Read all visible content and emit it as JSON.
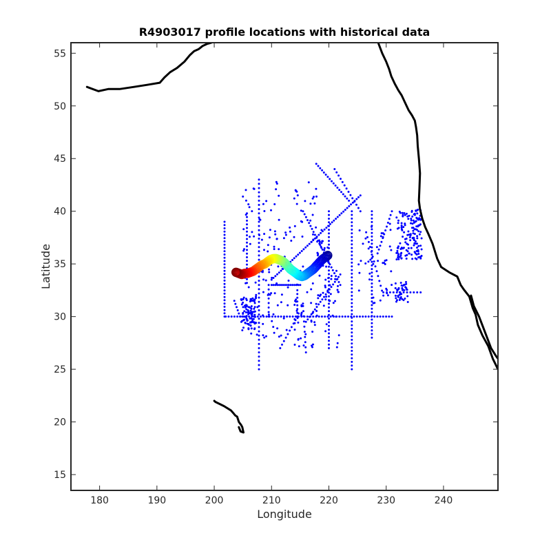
{
  "chart_data": {
    "type": "scatter",
    "title": "R4903017 profile locations with historical data",
    "xlabel": "Longitude",
    "ylabel": "Latitude",
    "xlim": [
      175,
      249.5
    ],
    "ylim": [
      13.5,
      56
    ],
    "xticks": [
      180,
      190,
      200,
      210,
      220,
      230,
      240
    ],
    "yticks": [
      15,
      20,
      25,
      30,
      35,
      40,
      45,
      50,
      55
    ],
    "grid": false,
    "legend": "none",
    "colors": {
      "historical": "#0000ff",
      "coastline": "#000000",
      "colormap": [
        "#00008f",
        "#0000ff",
        "#0080ff",
        "#00ffff",
        "#80ff80",
        "#ffff00",
        "#ff8000",
        "#ff0000",
        "#800000"
      ]
    },
    "coastline": {
      "north_america": [
        [
          228.6,
          56.0
        ],
        [
          229.3,
          55.0
        ],
        [
          230.0,
          54.2
        ],
        [
          230.5,
          53.5
        ],
        [
          230.9,
          52.8
        ],
        [
          231.5,
          52.1
        ],
        [
          232.1,
          51.5
        ],
        [
          232.7,
          51.0
        ],
        [
          233.3,
          50.3
        ],
        [
          233.9,
          49.6
        ],
        [
          234.5,
          49.1
        ],
        [
          235.0,
          48.6
        ],
        [
          235.2,
          48.0
        ],
        [
          235.4,
          47.2
        ],
        [
          235.5,
          46.2
        ],
        [
          235.7,
          45.0
        ],
        [
          235.9,
          43.6
        ],
        [
          235.8,
          42.2
        ],
        [
          235.7,
          41.0
        ],
        [
          235.9,
          40.2
        ],
        [
          236.3,
          39.3
        ],
        [
          236.8,
          38.5
        ],
        [
          237.4,
          37.8
        ],
        [
          238.1,
          36.9
        ],
        [
          238.9,
          35.5
        ],
        [
          239.6,
          34.7
        ],
        [
          241.0,
          34.2
        ],
        [
          242.4,
          33.8
        ],
        [
          243.0,
          33.0
        ],
        [
          243.5,
          32.6
        ],
        [
          244.5,
          31.9
        ],
        [
          245.1,
          30.8
        ],
        [
          245.6,
          30.2
        ],
        [
          246.0,
          29.2
        ],
        [
          246.8,
          28.2
        ],
        [
          247.8,
          27.2
        ],
        [
          248.6,
          26.0
        ],
        [
          249.5,
          25.0
        ]
      ],
      "baja_gulf_side": [
        [
          244.8,
          32.0
        ],
        [
          245.3,
          31.0
        ],
        [
          246.2,
          30.0
        ],
        [
          246.9,
          29.0
        ],
        [
          247.6,
          28.0
        ],
        [
          248.3,
          27.0
        ],
        [
          249.1,
          26.3
        ],
        [
          249.5,
          26.0
        ]
      ],
      "aleutians": [
        [
          177.8,
          51.8
        ],
        [
          179.8,
          51.4
        ],
        [
          181.5,
          51.6
        ],
        [
          183.5,
          51.6
        ],
        [
          186.0,
          51.8
        ],
        [
          188.3,
          52.0
        ],
        [
          190.5,
          52.2
        ],
        [
          191.3,
          52.7
        ],
        [
          192.3,
          53.2
        ],
        [
          193.5,
          53.6
        ],
        [
          194.8,
          54.2
        ],
        [
          195.7,
          54.8
        ],
        [
          196.5,
          55.2
        ],
        [
          197.3,
          55.4
        ],
        [
          198.0,
          55.7
        ],
        [
          198.8,
          55.9
        ],
        [
          199.5,
          56.0
        ]
      ],
      "hawaii": [
        [
          200.0,
          22.0
        ],
        [
          200.2,
          21.9
        ],
        [
          201.7,
          21.5
        ],
        [
          202.9,
          21.1
        ],
        [
          203.4,
          20.8
        ],
        [
          203.7,
          20.6
        ],
        [
          204.0,
          20.5
        ],
        [
          204.3,
          20.0
        ],
        [
          204.7,
          19.7
        ],
        [
          204.9,
          19.5
        ],
        [
          205.1,
          19.0
        ],
        [
          204.6,
          19.1
        ],
        [
          204.3,
          19.5
        ]
      ]
    },
    "historical_tracks": [
      {
        "from": [
          202.0,
          30.0
        ],
        "to": [
          231.0,
          30.0
        ],
        "n": 58
      },
      {
        "from": [
          210.0,
          33.0
        ],
        "to": [
          215.0,
          33.0
        ],
        "n": 16
      },
      {
        "from": [
          229.5,
          32.3
        ],
        "to": [
          236.0,
          32.3
        ],
        "n": 12
      },
      {
        "from": [
          209.5,
          33.0
        ],
        "to": [
          209.5,
          30.0
        ],
        "n": 8
      },
      {
        "from": [
          207.8,
          43.0
        ],
        "to": [
          207.8,
          25.0
        ],
        "n": 46
      },
      {
        "from": [
          201.8,
          39.0
        ],
        "to": [
          201.8,
          30.0
        ],
        "n": 30
      },
      {
        "from": [
          220.0,
          40.0
        ],
        "to": [
          220.0,
          27.0
        ],
        "n": 38
      },
      {
        "from": [
          224.0,
          40.0
        ],
        "to": [
          224.0,
          25.0
        ],
        "n": 44
      },
      {
        "from": [
          227.5,
          40.0
        ],
        "to": [
          227.5,
          28.0
        ],
        "n": 36
      },
      {
        "from": [
          210.0,
          33.5
        ],
        "to": [
          225.5,
          41.5
        ],
        "n": 48
      },
      {
        "from": [
          215.5,
          40.0
        ],
        "to": [
          222.0,
          33.0
        ],
        "n": 26
      },
      {
        "from": [
          216.0,
          29.5
        ],
        "to": [
          222.0,
          34.0
        ],
        "n": 20
      },
      {
        "from": [
          217.8,
          44.5
        ],
        "to": [
          223.5,
          41.0
        ],
        "n": 18
      },
      {
        "from": [
          221.0,
          44.0
        ],
        "to": [
          225.5,
          40.0
        ],
        "n": 14
      },
      {
        "from": [
          205.7,
          39.8
        ],
        "to": [
          205.7,
          33.2
        ],
        "n": 20
      },
      {
        "from": [
          211.5,
          27.0
        ],
        "to": [
          214.5,
          30.0
        ],
        "n": 10
      },
      {
        "from": [
          215.5,
          31.0
        ],
        "to": [
          216.0,
          26.6
        ],
        "n": 10
      },
      {
        "from": [
          203.5,
          31.5
        ],
        "to": [
          204.5,
          30.0
        ],
        "n": 6
      },
      {
        "from": [
          214.5,
          30.0
        ],
        "to": [
          214.5,
          32.5
        ],
        "n": 8
      },
      {
        "from": [
          228.5,
          36.0
        ],
        "to": [
          231.0,
          40.0
        ],
        "n": 12
      },
      {
        "from": [
          226.5,
          38.0
        ],
        "to": [
          229.5,
          32.0
        ],
        "n": 14
      }
    ],
    "historical_clusters": [
      {
        "center": [
          206.0,
          30.3
        ],
        "spread": [
          1.3,
          1.6
        ],
        "n": 90
      },
      {
        "center": [
          234.0,
          37.8
        ],
        "spread": [
          2.2,
          2.4
        ],
        "n": 150
      },
      {
        "center": [
          232.6,
          32.4
        ],
        "spread": [
          1.2,
          1.1
        ],
        "n": 40
      },
      {
        "center": [
          209.0,
          33.0
        ],
        "spread": [
          4.0,
          5.0
        ],
        "n": 90
      },
      {
        "center": [
          218.0,
          31.0
        ],
        "spread": [
          4.0,
          4.0
        ],
        "n": 80
      },
      {
        "center": [
          212.0,
          40.0
        ],
        "spread": [
          7.0,
          3.0
        ],
        "n": 60
      },
      {
        "center": [
          219.0,
          36.0
        ],
        "spread": [
          1.0,
          1.2
        ],
        "n": 20
      },
      {
        "center": [
          228.0,
          35.0
        ],
        "spread": [
          3.0,
          4.0
        ],
        "n": 40
      }
    ],
    "float_track": {
      "points": [
        [
          219.8,
          35.8
        ],
        [
          219.3,
          35.6
        ],
        [
          218.8,
          35.4
        ],
        [
          218.3,
          35.1
        ],
        [
          217.8,
          34.8
        ],
        [
          217.3,
          34.5
        ],
        [
          216.8,
          34.3
        ],
        [
          216.3,
          34.1
        ],
        [
          215.8,
          33.9
        ],
        [
          215.3,
          33.8
        ],
        [
          214.8,
          33.9
        ],
        [
          214.3,
          34.1
        ],
        [
          213.8,
          34.3
        ],
        [
          213.3,
          34.5
        ],
        [
          212.8,
          34.8
        ],
        [
          212.3,
          35.1
        ],
        [
          211.8,
          35.3
        ],
        [
          211.3,
          35.4
        ],
        [
          210.8,
          35.5
        ],
        [
          210.3,
          35.5
        ],
        [
          209.8,
          35.4
        ],
        [
          209.3,
          35.2
        ],
        [
          208.8,
          35.0
        ],
        [
          208.3,
          34.9
        ],
        [
          207.8,
          34.7
        ],
        [
          207.3,
          34.5
        ],
        [
          206.8,
          34.3
        ],
        [
          206.3,
          34.2
        ],
        [
          205.8,
          34.1
        ],
        [
          205.3,
          34.1
        ],
        [
          204.8,
          34.0
        ],
        [
          204.3,
          34.1
        ],
        [
          203.8,
          34.2
        ]
      ],
      "colormap": "jet",
      "marker": "open-circle"
    }
  }
}
